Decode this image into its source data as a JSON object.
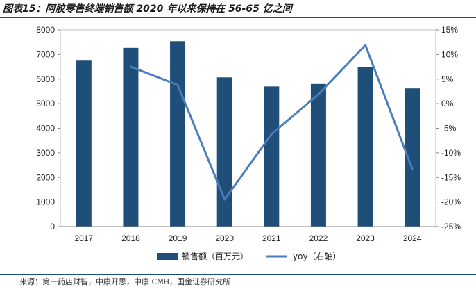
{
  "title": "图表15：阿胶零售终端销售额 2020 年以来保持在 56-65 亿之间",
  "source": "来源：第一药店财智，中康开思，中康 CMH，国金证券研究所",
  "colors": {
    "bar": "#1f4e79",
    "line": "#4a7ebb",
    "rule": "#1f4e79"
  },
  "chart_data": {
    "type": "bar",
    "categories": [
      "2017",
      "2018",
      "2019",
      "2020",
      "2021",
      "2022",
      "2023",
      "2024"
    ],
    "series": [
      {
        "name": "销售额（百万元）",
        "type": "bar",
        "axis": "left",
        "values": [
          6750,
          7270,
          7540,
          6070,
          5700,
          5800,
          6480,
          5620
        ]
      },
      {
        "name": "yoy（右轴）",
        "type": "line",
        "axis": "right",
        "values": [
          null,
          7.5,
          3.8,
          -19.5,
          -6.2,
          1.9,
          11.9,
          -13.3
        ]
      }
    ],
    "y_left": {
      "min": 0,
      "max": 8000,
      "step": 1000,
      "ticks": [
        "0",
        "1000",
        "2000",
        "3000",
        "4000",
        "5000",
        "6000",
        "7000",
        "8000"
      ]
    },
    "y_right": {
      "min": -25,
      "max": 15,
      "step": 5,
      "ticks": [
        "-25%",
        "-20%",
        "-15%",
        "-10%",
        "-5%",
        "0%",
        "5%",
        "10%",
        "15%"
      ]
    },
    "legend_position": "bottom",
    "grid": false
  }
}
